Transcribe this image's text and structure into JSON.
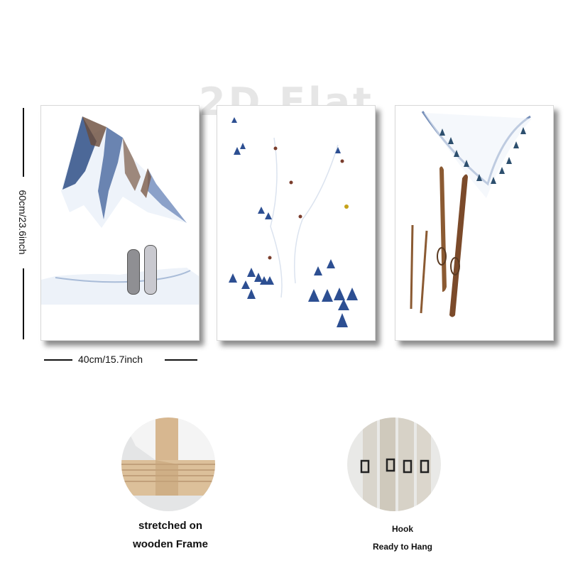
{
  "watermark": "2D Flat",
  "dimensions": {
    "height_label": "60cm/23.6inch",
    "width_label": "40cm/15.7inch"
  },
  "panels": [
    {
      "subject": "snowy mountains with snowboards"
    },
    {
      "subject": "ski slope with skiers and pine trees"
    },
    {
      "subject": "vintage wooden skis and poles"
    }
  ],
  "features": {
    "frame": {
      "line1": "stretched on",
      "line2": "wooden Frame"
    },
    "hook": {
      "line1": "Hook",
      "line2": "Ready to Hang"
    }
  },
  "colors": {
    "ink": "#111111",
    "snow_blue": "#3a5f9e",
    "wood": "#8b5a32",
    "frame_wood": "#d7b790"
  }
}
